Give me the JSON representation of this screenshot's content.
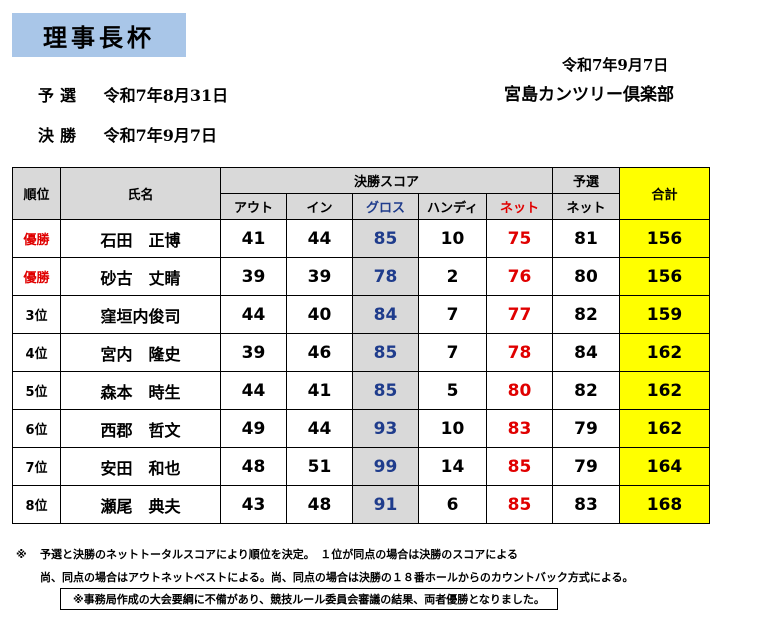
{
  "title": "理事長杯",
  "header": {
    "date": "令和7年9月7日",
    "club": "宮島カンツリー倶楽部"
  },
  "rounds": [
    {
      "label": "予選",
      "date": "令和7年8月31日"
    },
    {
      "label": "決勝",
      "date": "令和7年9月7日"
    }
  ],
  "table": {
    "headers": {
      "rank": "順位",
      "name": "氏名",
      "final_group": "決勝スコア",
      "out": "アウト",
      "in": "イン",
      "gross": "グロス",
      "handicap": "ハンディ",
      "net": "ネット",
      "prelim_group": "予選",
      "prelim_net": "ネット",
      "total": "合計"
    },
    "rows": [
      {
        "rank": "優勝",
        "name": "石田　正博",
        "out": "41",
        "in": "44",
        "gross": "85",
        "hdcp": "10",
        "net": "75",
        "prelim": "81",
        "total": "156"
      },
      {
        "rank": "優勝",
        "name": "砂古　丈睛",
        "out": "39",
        "in": "39",
        "gross": "78",
        "hdcp": "2",
        "net": "76",
        "prelim": "80",
        "total": "156"
      },
      {
        "rank": "3位",
        "name": "窪垣内俊司",
        "out": "44",
        "in": "40",
        "gross": "84",
        "hdcp": "7",
        "net": "77",
        "prelim": "82",
        "total": "159"
      },
      {
        "rank": "4位",
        "name": "宮内　隆史",
        "out": "39",
        "in": "46",
        "gross": "85",
        "hdcp": "7",
        "net": "78",
        "prelim": "84",
        "total": "162"
      },
      {
        "rank": "5位",
        "name": "森本　時生",
        "out": "44",
        "in": "41",
        "gross": "85",
        "hdcp": "5",
        "net": "80",
        "prelim": "82",
        "total": "162"
      },
      {
        "rank": "6位",
        "name": "西郡　哲文",
        "out": "49",
        "in": "44",
        "gross": "93",
        "hdcp": "10",
        "net": "83",
        "prelim": "79",
        "total": "162"
      },
      {
        "rank": "7位",
        "name": "安田　和也",
        "out": "48",
        "in": "51",
        "gross": "99",
        "hdcp": "14",
        "net": "85",
        "prelim": "79",
        "total": "164"
      },
      {
        "rank": "8位",
        "name": "瀬尾　典夫",
        "out": "43",
        "in": "48",
        "gross": "91",
        "hdcp": "6",
        "net": "85",
        "prelim": "83",
        "total": "168"
      }
    ]
  },
  "notes": {
    "mark": "※",
    "line1": "予選と決勝のネットトータルスコアにより順位を決定。　１位が同点の場合は決勝のスコアによる",
    "line2": "尚、同点の場合はアウトネットベストによる。尚、同点の場合は決勝の１８番ホールからのカウントバック方式による。",
    "line3": "※事務局作成の大会要綱に不備があり、競技ルール委員会審議の結果、両者優勝となりました。"
  },
  "colors": {
    "title_bg": "#a9c6e8",
    "total_bg": "#ffff00",
    "net_red": "#e00000",
    "gross_blue": "#1f3c8c",
    "header_gray": "#d9d9d9"
  }
}
